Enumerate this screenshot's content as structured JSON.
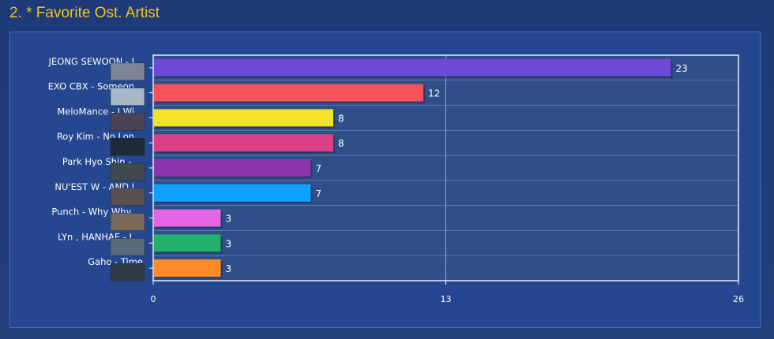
{
  "page": {
    "title": "2. * Favorite Ost. Artist"
  },
  "colors": {
    "background": "#1f3a78",
    "title": "#f2c418",
    "plot_background": "#2f4f88",
    "grid": "#8fa6d6",
    "text": "#ffffff"
  },
  "chart_data": {
    "type": "bar",
    "orientation": "horizontal",
    "title": "",
    "xlabel": "",
    "ylabel": "",
    "xlim": [
      0,
      26
    ],
    "x_ticks": [
      "0",
      "13",
      "26"
    ],
    "grid": true,
    "legend": "none",
    "categories": [
      "JEONG SEWOON - I...",
      "EXO CBX - Someon...",
      "MeloMance - I Wi...",
      "Roy Kim - No Lon...",
      "Park Hyo Shin - ...",
      "NU'EST W - AND I...",
      "Punch - Why Why ...",
      "LYn , HANHAE - L...",
      "Gaho - Time"
    ],
    "values": [
      23,
      12,
      8,
      8,
      7,
      7,
      3,
      3,
      3
    ],
    "value_labels": [
      "23",
      "12",
      "8",
      "8",
      "7",
      "7",
      "3",
      "3",
      "3"
    ],
    "bar_colors": [
      "#6e48d8",
      "#f5525a",
      "#f2e22a",
      "#db3f86",
      "#8b35ac",
      "#0fa2ff",
      "#e466e6",
      "#22b06a",
      "#ff8a2a"
    ],
    "thumbnail_colors": [
      "#7b8596",
      "#a8b8c8",
      "#4a4456",
      "#1e2a34",
      "#3e4a4e",
      "#5a5050",
      "#7a6a5a",
      "#5a6a7a",
      "#2e3a44"
    ]
  }
}
